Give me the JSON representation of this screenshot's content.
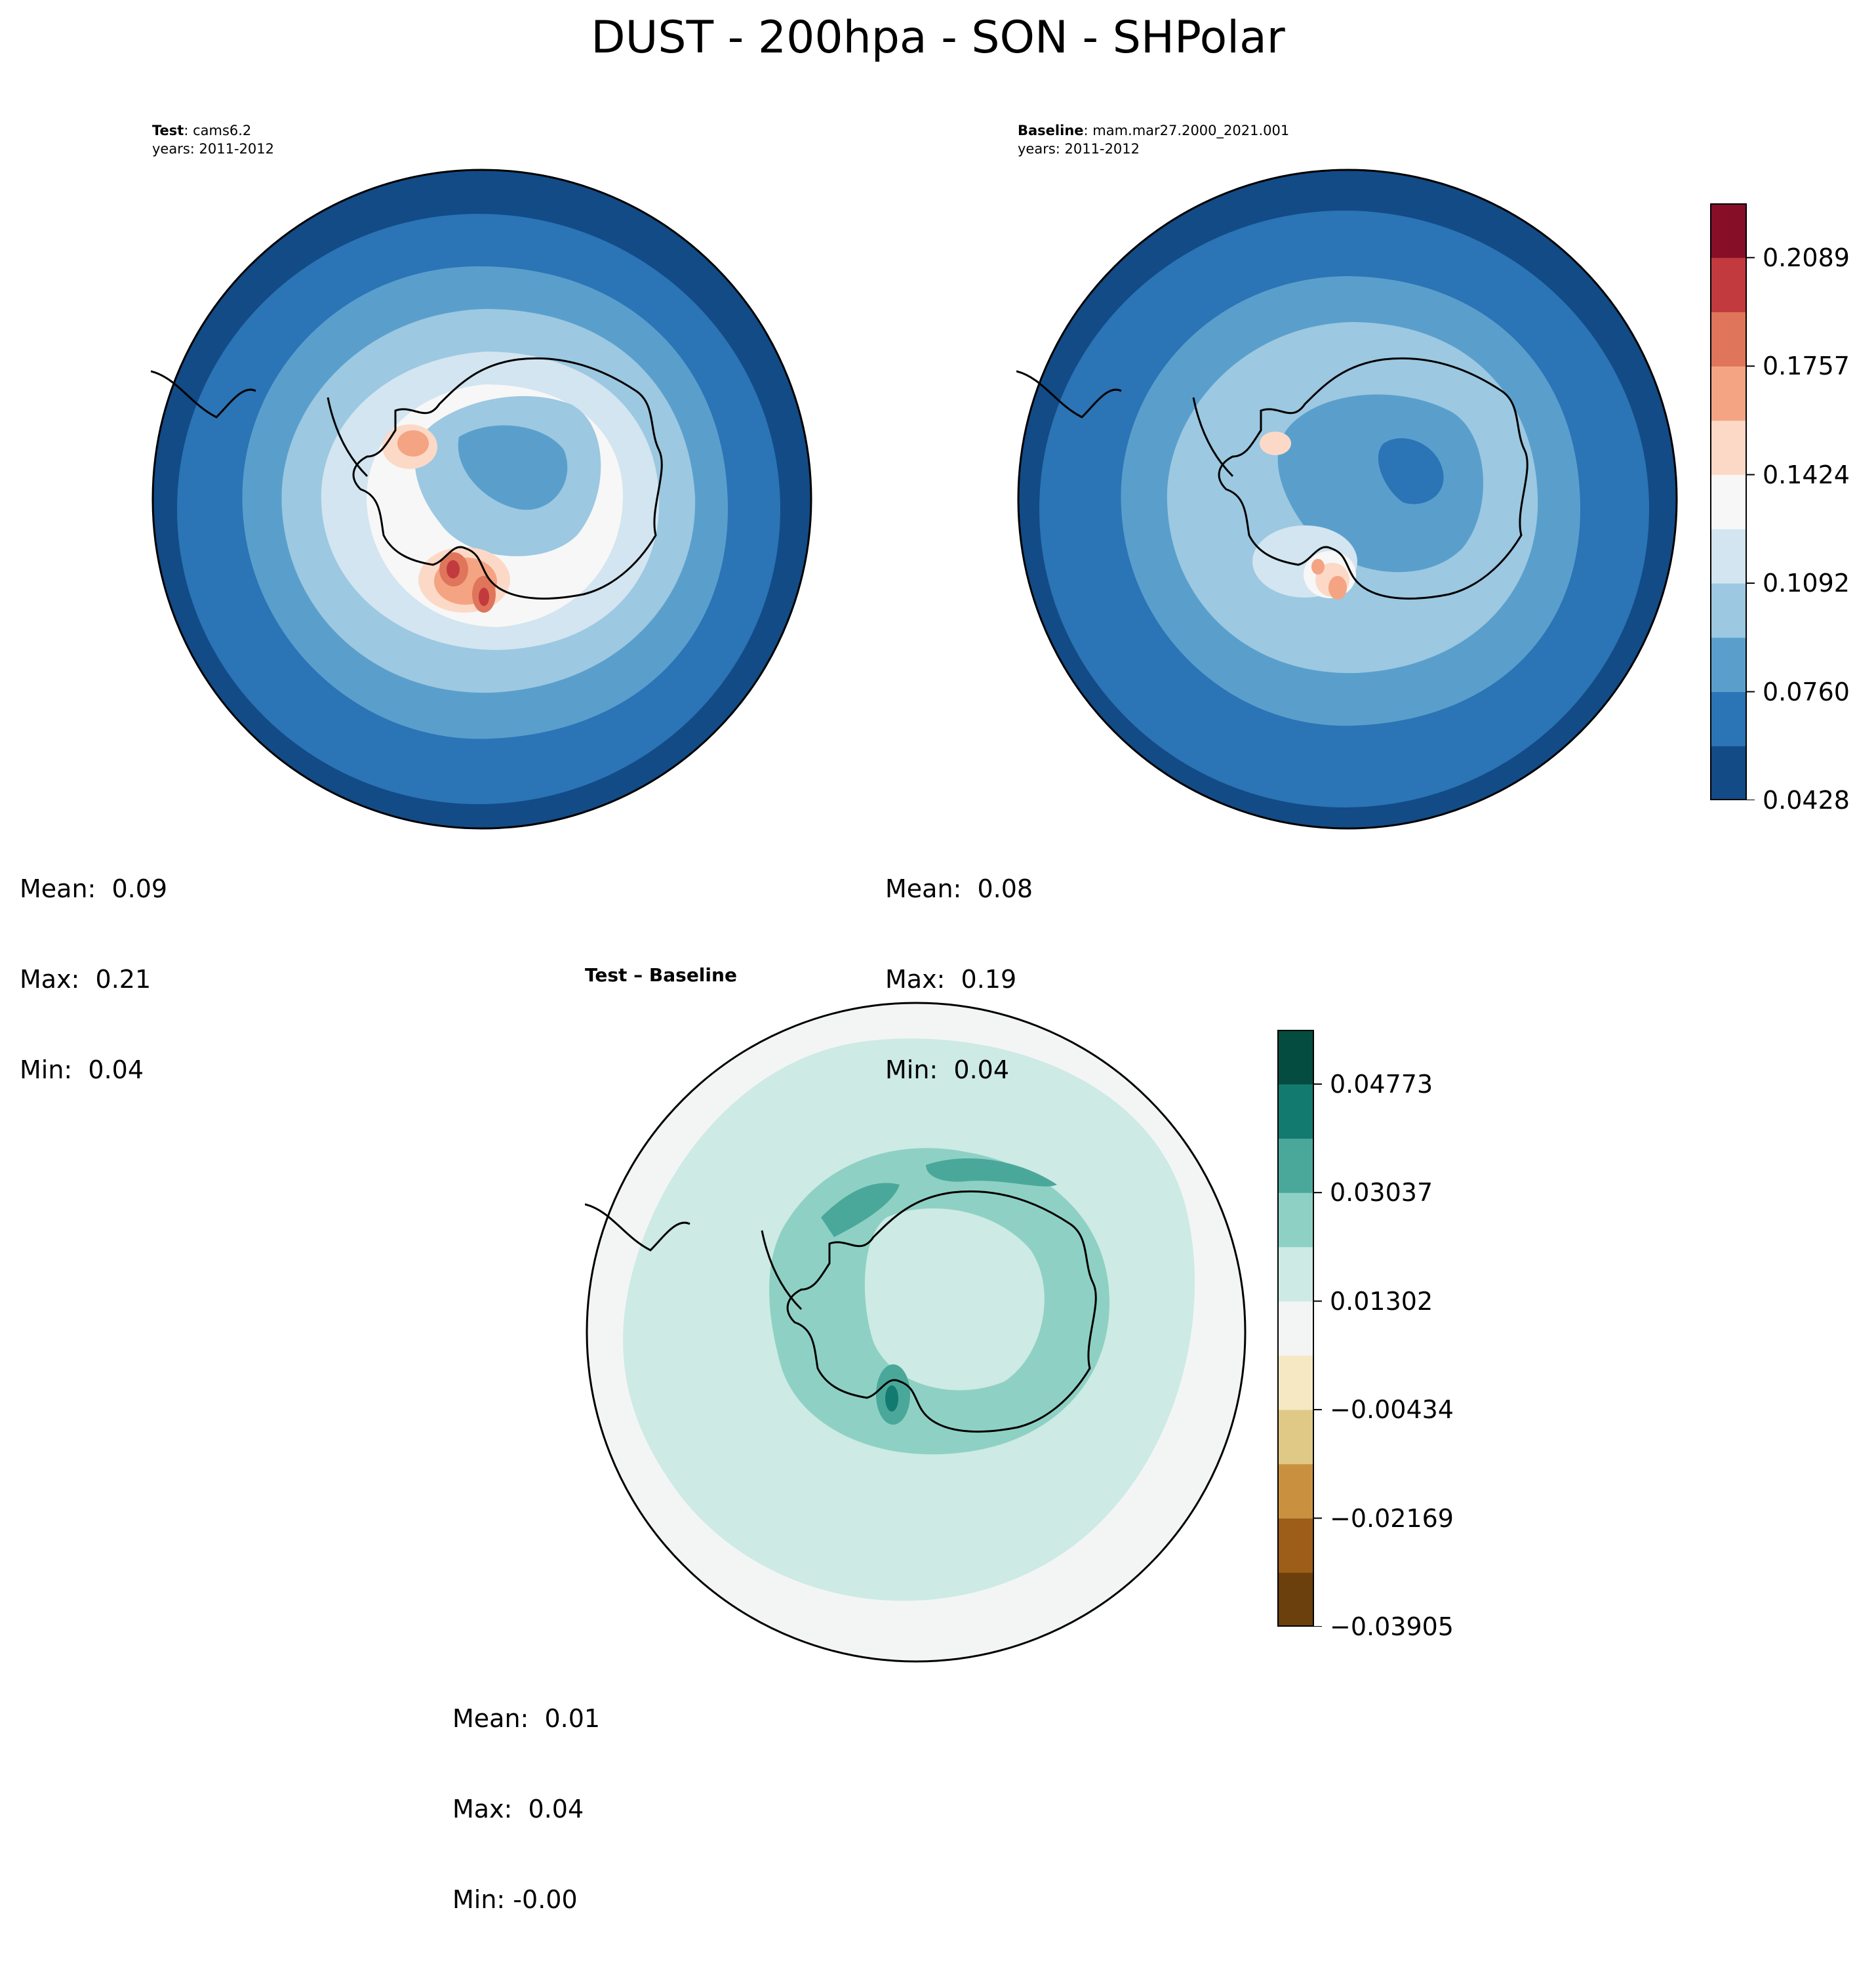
{
  "title": "DUST - 200hpa - SON - SHPolar",
  "panels": {
    "test": {
      "label_bold": "Test",
      "label_rest": ": cams6.2",
      "years": "years: 2011-2012",
      "stats": {
        "mean": "Mean:  0.09",
        "max": "Max:  0.21",
        "min": "Min:  0.04"
      }
    },
    "baseline": {
      "label_bold": "Baseline",
      "label_rest": ": mam.mar27.2000_2021.001",
      "years": "years: 2011-2012",
      "stats": {
        "mean": "Mean:  0.08",
        "max": "Max:  0.19",
        "min": "Min:  0.04"
      }
    },
    "diff": {
      "title": "Test – Baseline",
      "stats": {
        "mean": "Mean:  0.01",
        "max": "Max:  0.04",
        "min": "Min: -0.00"
      }
    }
  },
  "colorbars": {
    "main": {
      "ticks": [
        "0.0428",
        "0.0760",
        "0.1092",
        "0.1424",
        "0.1757",
        "0.2089"
      ],
      "colors": [
        "#124b86",
        "#2b74b6",
        "#5a9fcc",
        "#9cc8e1",
        "#d2e5f0",
        "#f7f7f7",
        "#fcd9c7",
        "#f4a482",
        "#df755b",
        "#c23a3e",
        "#870e27"
      ]
    },
    "diff": {
      "ticks": [
        "−0.03905",
        "−0.02169",
        "−0.00434",
        "0.01302",
        "0.03037",
        "0.04773"
      ],
      "colors": [
        "#6b400c",
        "#9c5e18",
        "#c9913f",
        "#e0c986",
        "#f5e8c3",
        "#f3f5f4",
        "#cdeae5",
        "#8ed1c4",
        "#4aa89b",
        "#137a70",
        "#044c3f"
      ]
    }
  }
}
